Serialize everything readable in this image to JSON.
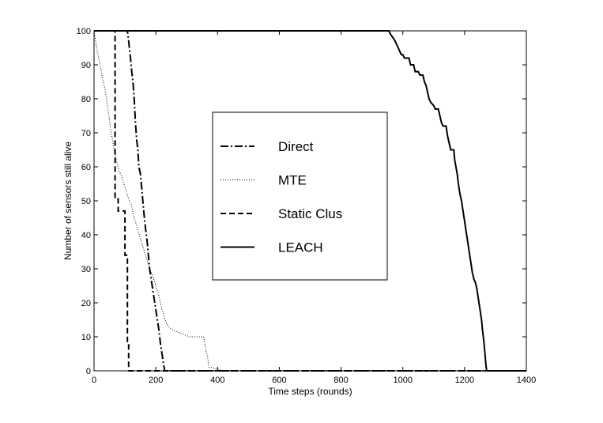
{
  "chart_data": {
    "type": "line",
    "title": "",
    "xlabel": "Time steps (rounds)",
    "ylabel": "Number of sensors still alive",
    "xlim": [
      0,
      1400
    ],
    "ylim": [
      0,
      100
    ],
    "xticks": [
      0,
      200,
      400,
      600,
      800,
      1000,
      1200,
      1400
    ],
    "yticks": [
      0,
      10,
      20,
      30,
      40,
      50,
      60,
      70,
      80,
      90,
      100
    ],
    "grid": false,
    "legend_position": "center",
    "series": [
      {
        "name": "Direct",
        "style": "dash-dot",
        "points": [
          [
            0,
            100
          ],
          [
            108,
            100
          ],
          [
            112,
            97
          ],
          [
            118,
            92
          ],
          [
            122,
            88
          ],
          [
            126,
            85
          ],
          [
            130,
            80
          ],
          [
            134,
            73
          ],
          [
            138,
            68
          ],
          [
            142,
            65
          ],
          [
            145,
            60
          ],
          [
            150,
            58
          ],
          [
            155,
            53
          ],
          [
            160,
            48
          ],
          [
            163,
            45
          ],
          [
            168,
            41
          ],
          [
            172,
            38
          ],
          [
            176,
            34
          ],
          [
            180,
            30
          ],
          [
            185,
            27
          ],
          [
            190,
            24
          ],
          [
            195,
            21
          ],
          [
            200,
            18
          ],
          [
            205,
            15
          ],
          [
            210,
            12
          ],
          [
            215,
            8
          ],
          [
            220,
            5
          ],
          [
            225,
            2
          ],
          [
            229,
            0
          ],
          [
            1400,
            0
          ]
        ]
      },
      {
        "name": "MTE",
        "style": "dotted",
        "points": [
          [
            0,
            100
          ],
          [
            5,
            97
          ],
          [
            10,
            94
          ],
          [
            15,
            92
          ],
          [
            20,
            90
          ],
          [
            25,
            87
          ],
          [
            30,
            85
          ],
          [
            35,
            83
          ],
          [
            40,
            80
          ],
          [
            45,
            77
          ],
          [
            50,
            74
          ],
          [
            55,
            70
          ],
          [
            60,
            68
          ],
          [
            65,
            65
          ],
          [
            70,
            63
          ],
          [
            75,
            61
          ],
          [
            80,
            59
          ],
          [
            90,
            57
          ],
          [
            100,
            54
          ],
          [
            110,
            51
          ],
          [
            120,
            49
          ],
          [
            130,
            45
          ],
          [
            140,
            42
          ],
          [
            150,
            39
          ],
          [
            160,
            36
          ],
          [
            170,
            33
          ],
          [
            180,
            30
          ],
          [
            190,
            28
          ],
          [
            200,
            25
          ],
          [
            210,
            22
          ],
          [
            220,
            18
          ],
          [
            230,
            15
          ],
          [
            240,
            13
          ],
          [
            255,
            12
          ],
          [
            280,
            11
          ],
          [
            310,
            10
          ],
          [
            355,
            10
          ],
          [
            362,
            6
          ],
          [
            368,
            4
          ],
          [
            372,
            1
          ],
          [
            380,
            1
          ],
          [
            420,
            0
          ],
          [
            1400,
            0
          ]
        ]
      },
      {
        "name": "Static Clus",
        "style": "dashed",
        "points": [
          [
            0,
            100
          ],
          [
            68,
            100
          ],
          [
            68,
            51
          ],
          [
            78,
            51
          ],
          [
            78,
            47
          ],
          [
            100,
            47
          ],
          [
            100,
            34
          ],
          [
            108,
            34
          ],
          [
            108,
            8
          ],
          [
            112,
            8
          ],
          [
            112,
            0
          ],
          [
            1400,
            0
          ]
        ]
      },
      {
        "name": "LEACH",
        "style": "solid",
        "points": [
          [
            0,
            100
          ],
          [
            955,
            100
          ],
          [
            960,
            99
          ],
          [
            968,
            98
          ],
          [
            975,
            97
          ],
          [
            980,
            96
          ],
          [
            985,
            95
          ],
          [
            990,
            94
          ],
          [
            995,
            93
          ],
          [
            1000,
            93
          ],
          [
            1005,
            92
          ],
          [
            1020,
            92
          ],
          [
            1025,
            90
          ],
          [
            1035,
            90
          ],
          [
            1040,
            88
          ],
          [
            1050,
            88
          ],
          [
            1055,
            87
          ],
          [
            1065,
            87
          ],
          [
            1070,
            85
          ],
          [
            1075,
            84
          ],
          [
            1080,
            82
          ],
          [
            1085,
            80
          ],
          [
            1090,
            79
          ],
          [
            1100,
            78
          ],
          [
            1105,
            77
          ],
          [
            1115,
            77
          ],
          [
            1120,
            75
          ],
          [
            1125,
            73
          ],
          [
            1130,
            72
          ],
          [
            1140,
            72
          ],
          [
            1145,
            69
          ],
          [
            1150,
            67
          ],
          [
            1155,
            65
          ],
          [
            1165,
            65
          ],
          [
            1168,
            62
          ],
          [
            1172,
            60
          ],
          [
            1176,
            58
          ],
          [
            1180,
            55
          ],
          [
            1185,
            52
          ],
          [
            1190,
            50
          ],
          [
            1195,
            47
          ],
          [
            1200,
            44
          ],
          [
            1205,
            41
          ],
          [
            1210,
            38
          ],
          [
            1215,
            35
          ],
          [
            1220,
            32
          ],
          [
            1225,
            29
          ],
          [
            1230,
            27
          ],
          [
            1235,
            26
          ],
          [
            1240,
            24
          ],
          [
            1245,
            21
          ],
          [
            1250,
            18
          ],
          [
            1255,
            15
          ],
          [
            1258,
            12
          ],
          [
            1262,
            9
          ],
          [
            1265,
            6
          ],
          [
            1268,
            3
          ],
          [
            1270,
            1
          ],
          [
            1272,
            0
          ],
          [
            1400,
            0
          ]
        ]
      }
    ]
  }
}
